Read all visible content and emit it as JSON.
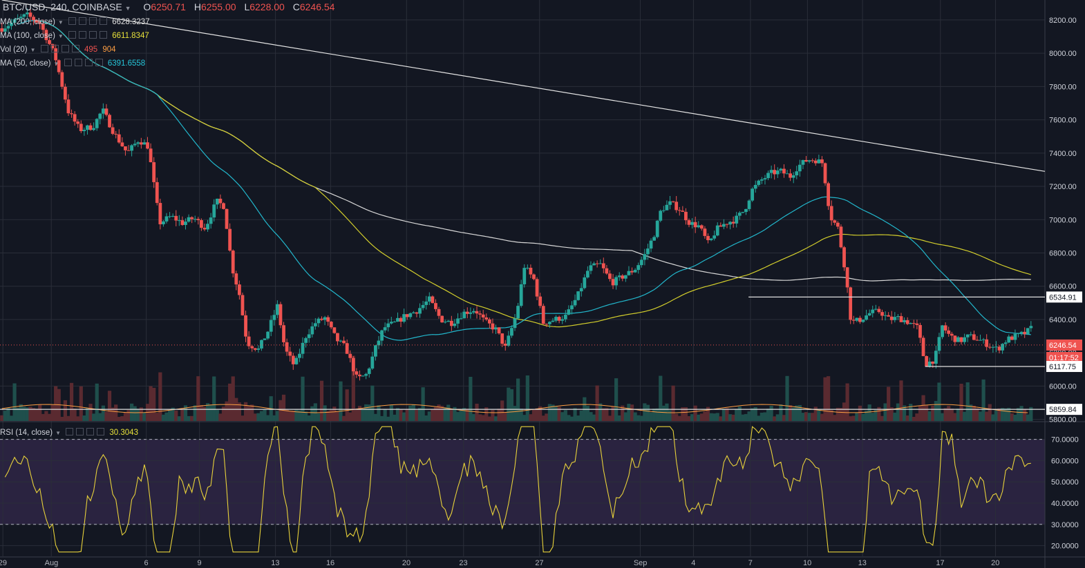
{
  "header": {
    "symbol": "BTC/USD, 240, COINBASE",
    "o_label": "O",
    "o": "6250.71",
    "h_label": "H",
    "h": "6255.00",
    "l_label": "L",
    "l": "6228.00",
    "c_label": "C",
    "c": "6246.54"
  },
  "indicators": [
    {
      "label": "MA (200, close)",
      "value": "6628.3237",
      "color": "#e0e0e0"
    },
    {
      "label": "MA (100, close)",
      "value": "6611.8347",
      "color": "#e8e23a"
    },
    {
      "label": "Vol (20)",
      "value": "495",
      "value2": "904",
      "color": "#ef5350",
      "color2": "#ff9f43"
    },
    {
      "label": "MA (50, close)",
      "value": "6391.6558",
      "color": "#26c6da"
    }
  ],
  "rsi_legend": {
    "label": "RSI (14, close)",
    "value": "30.3043",
    "color": "#e8e23a"
  },
  "colors": {
    "background": "#131722",
    "grid": "#2a2e39",
    "up": "#26a69a",
    "down": "#ef5350",
    "ma200": "#d8d8d8",
    "ma100": "#d4cf2c",
    "ma50": "#22b7cc",
    "rsi": "#e8d23a",
    "rsi_band": "#2a2340",
    "trend": "#e6e6e6"
  },
  "chart_data": [
    {
      "type": "line",
      "title": "BTC/USD, 240, COINBASE",
      "y_ticks": [
        "8200.00",
        "8000.00",
        "7800.00",
        "7600.00",
        "7400.00",
        "7200.00",
        "7000.00",
        "6800.00",
        "6600.00",
        "6400.00",
        "6200.00",
        "6000.00",
        "5800.00"
      ],
      "ylim": [
        5790,
        8320
      ],
      "x_ticks": [
        "29",
        "Aug",
        "6",
        "9",
        "13",
        "16",
        "20",
        "23",
        "27",
        "Sep",
        "4",
        "7",
        "10",
        "13",
        "17",
        "20"
      ],
      "x_tick_days": [
        -2.25,
        0.3,
        5.3,
        8.1,
        12.1,
        15.0,
        19.0,
        22.0,
        26.0,
        31.3,
        34.1,
        37.1,
        40.1,
        43.0,
        47.1,
        50.0
      ],
      "x_days_range": [
        -2.4,
        52.6
      ],
      "price_labels": [
        {
          "value": "6534.91",
          "kind": "level"
        },
        {
          "value": "6246.54",
          "kind": "current"
        },
        {
          "value": "01:17:52",
          "kind": "countdown"
        },
        {
          "value": "6117.75",
          "kind": "level"
        },
        {
          "value": "5859.84",
          "kind": "level"
        }
      ],
      "horizontal_levels": [
        6534.91,
        6117.75,
        5859.84
      ],
      "current_price": 6246.54,
      "trend_line": [
        [
          -2.3,
          8320
        ],
        [
          52.6,
          7290
        ]
      ],
      "close_path": [
        [
          -2.3,
          8150
        ],
        [
          -1.5,
          8200
        ],
        [
          -1,
          8230
        ],
        [
          -0.3,
          8180
        ],
        [
          0.5,
          7980
        ],
        [
          1.2,
          7650
        ],
        [
          1.8,
          7540
        ],
        [
          2.5,
          7560
        ],
        [
          3,
          7660
        ],
        [
          3.6,
          7520
        ],
        [
          4.3,
          7400
        ],
        [
          4.9,
          7480
        ],
        [
          5.4,
          7440
        ],
        [
          6,
          6980
        ],
        [
          6.6,
          7020
        ],
        [
          7.2,
          6980
        ],
        [
          7.8,
          7010
        ],
        [
          8.4,
          6950
        ],
        [
          9,
          7110
        ],
        [
          9.4,
          7080
        ],
        [
          9.8,
          6720
        ],
        [
          10.2,
          6550
        ],
        [
          10.6,
          6260
        ],
        [
          11.2,
          6220
        ],
        [
          11.7,
          6330
        ],
        [
          12.2,
          6480
        ],
        [
          12.6,
          6220
        ],
        [
          13.1,
          6120
        ],
        [
          13.7,
          6300
        ],
        [
          14.2,
          6380
        ],
        [
          14.7,
          6410
        ],
        [
          15.3,
          6280
        ],
        [
          15.8,
          6230
        ],
        [
          16.4,
          6040
        ],
        [
          16.9,
          6070
        ],
        [
          17.4,
          6240
        ],
        [
          17.8,
          6350
        ],
        [
          18.4,
          6380
        ],
        [
          18.9,
          6420
        ],
        [
          19.5,
          6450
        ],
        [
          20.2,
          6520
        ],
        [
          20.8,
          6400
        ],
        [
          21.4,
          6380
        ],
        [
          22,
          6440
        ],
        [
          22.6,
          6460
        ],
        [
          23.1,
          6390
        ],
        [
          23.7,
          6340
        ],
        [
          24.2,
          6230
        ],
        [
          24.8,
          6440
        ],
        [
          25.2,
          6720
        ],
        [
          25.7,
          6640
        ],
        [
          26.2,
          6380
        ],
        [
          26.8,
          6400
        ],
        [
          27.4,
          6420
        ],
        [
          28,
          6540
        ],
        [
          28.6,
          6710
        ],
        [
          29.2,
          6730
        ],
        [
          29.8,
          6620
        ],
        [
          30.4,
          6660
        ],
        [
          31,
          6700
        ],
        [
          31.5,
          6780
        ],
        [
          32,
          6900
        ],
        [
          32.4,
          7060
        ],
        [
          32.9,
          7100
        ],
        [
          33.4,
          7060
        ],
        [
          33.9,
          6980
        ],
        [
          34.4,
          6960
        ],
        [
          34.9,
          6850
        ],
        [
          35.3,
          6940
        ],
        [
          35.8,
          6980
        ],
        [
          36.3,
          7000
        ],
        [
          36.8,
          7060
        ],
        [
          37.2,
          7180
        ],
        [
          37.7,
          7240
        ],
        [
          38.2,
          7280
        ],
        [
          38.7,
          7290
        ],
        [
          39.2,
          7260
        ],
        [
          39.6,
          7320
        ],
        [
          40.1,
          7360
        ],
        [
          40.5,
          7360
        ],
        [
          40.9,
          7340
        ],
        [
          41.3,
          7020
        ],
        [
          41.7,
          6950
        ],
        [
          42.1,
          6690
        ],
        [
          42.4,
          6380
        ],
        [
          42.9,
          6400
        ],
        [
          43.4,
          6440
        ],
        [
          43.9,
          6450
        ],
        [
          44.4,
          6400
        ],
        [
          44.9,
          6410
        ],
        [
          45.5,
          6380
        ],
        [
          45.9,
          6350
        ],
        [
          46.3,
          6130
        ],
        [
          46.8,
          6160
        ],
        [
          47.2,
          6360
        ],
        [
          47.6,
          6300
        ],
        [
          48.1,
          6270
        ],
        [
          48.6,
          6300
        ],
        [
          49.1,
          6280
        ],
        [
          49.6,
          6250
        ],
        [
          50.1,
          6220
        ],
        [
          50.6,
          6280
        ],
        [
          51.1,
          6300
        ],
        [
          51.6,
          6320
        ],
        [
          52.0,
          6360
        ]
      ]
    },
    {
      "type": "line",
      "title": "RSI (14, close)",
      "y_ticks": [
        "70.0000",
        "60.0000",
        "50.0000",
        "40.0000",
        "30.0000",
        "20.0000"
      ],
      "ylim": [
        15,
        78
      ],
      "bands": [
        30,
        70
      ],
      "current": 30.3043
    }
  ]
}
